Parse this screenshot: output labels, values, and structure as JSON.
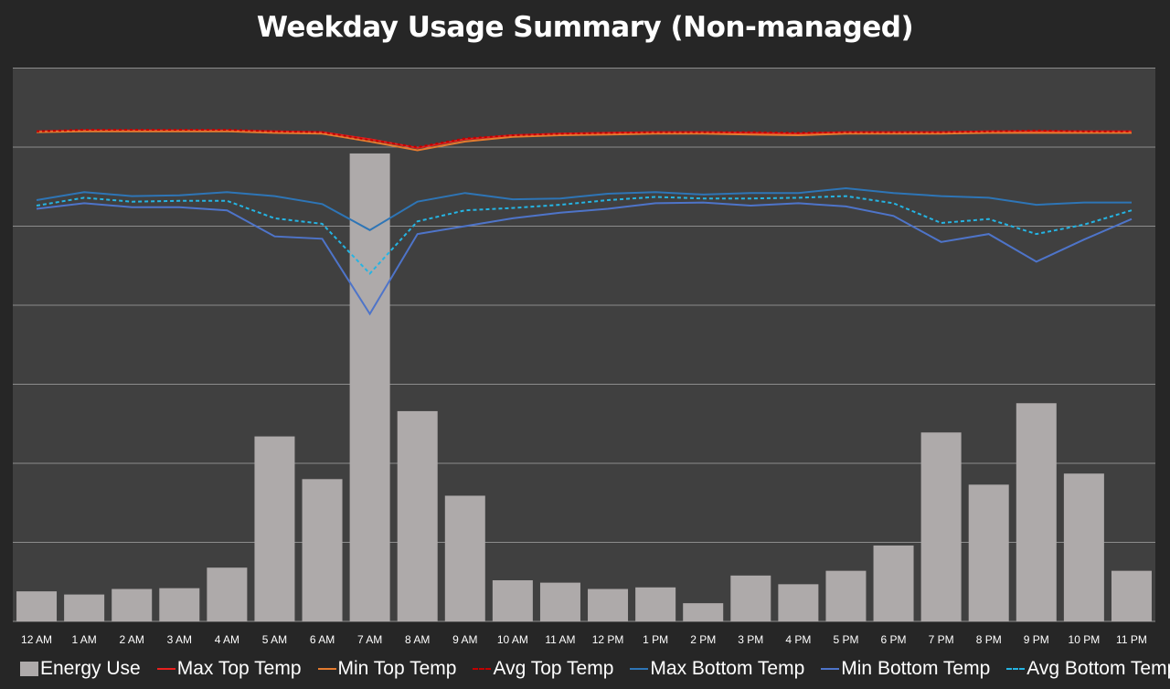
{
  "chart_data": {
    "type": "bar",
    "title": "Weekday Usage Summary (Non-managed)",
    "categories": [
      "12 AM",
      "1 AM",
      "2 AM",
      "3 AM",
      "4 AM",
      "5 AM",
      "6 AM",
      "7 AM",
      "8 AM",
      "9 AM",
      "10 AM",
      "11 AM",
      "12 PM",
      "1 PM",
      "2 PM",
      "3 PM",
      "4 PM",
      "5 PM",
      "6 PM",
      "7 PM",
      "8 PM",
      "9 PM",
      "10 PM",
      "11 PM"
    ],
    "ylim": [
      0,
      7
    ],
    "grid": true,
    "legend_position": "bottom",
    "series": [
      {
        "name": "Energy Use",
        "type": "bar",
        "color": "#aeaaaa",
        "dash": "none",
        "values": [
          0.38,
          0.34,
          0.41,
          0.42,
          0.68,
          2.34,
          1.8,
          5.92,
          2.66,
          1.59,
          0.52,
          0.49,
          0.41,
          0.43,
          0.23,
          0.58,
          0.47,
          0.64,
          0.96,
          2.39,
          1.73,
          2.76,
          1.87,
          0.64
        ]
      },
      {
        "name": "Max Top Temp",
        "type": "line",
        "color": "#e8201e",
        "dash": "none",
        "values": [
          6.2,
          6.21,
          6.21,
          6.21,
          6.21,
          6.2,
          6.19,
          6.1,
          5.99,
          6.1,
          6.15,
          6.17,
          6.18,
          6.19,
          6.19,
          6.18,
          6.17,
          6.19,
          6.19,
          6.19,
          6.2,
          6.2,
          6.2,
          6.2
        ]
      },
      {
        "name": "Min Top Temp",
        "type": "line",
        "color": "#e47b2f",
        "dash": "none",
        "values": [
          6.19,
          6.2,
          6.2,
          6.2,
          6.2,
          6.18,
          6.17,
          6.07,
          5.96,
          6.07,
          6.13,
          6.15,
          6.16,
          6.17,
          6.17,
          6.16,
          6.15,
          6.17,
          6.17,
          6.17,
          6.18,
          6.18,
          6.18,
          6.18
        ]
      },
      {
        "name": "Avg Top Temp",
        "type": "line",
        "color": "#c00000",
        "dash": "3 3",
        "values": [
          6.2,
          6.22,
          6.22,
          6.22,
          6.22,
          6.2,
          6.19,
          6.09,
          6.0,
          6.11,
          6.15,
          6.17,
          6.18,
          6.19,
          6.19,
          6.19,
          6.18,
          6.19,
          6.19,
          6.19,
          6.2,
          6.21,
          6.2,
          6.2
        ]
      },
      {
        "name": "Max Bottom Temp",
        "type": "line",
        "color": "#2e75b6",
        "dash": "none",
        "values": [
          5.33,
          5.43,
          5.38,
          5.39,
          5.43,
          5.38,
          5.28,
          4.95,
          5.31,
          5.42,
          5.34,
          5.35,
          5.41,
          5.43,
          5.4,
          5.42,
          5.42,
          5.48,
          5.42,
          5.38,
          5.36,
          5.27,
          5.3,
          5.3
        ]
      },
      {
        "name": "Min Bottom Temp",
        "type": "line",
        "color": "#4e74c9",
        "dash": "none",
        "values": [
          5.22,
          5.29,
          5.24,
          5.24,
          5.2,
          4.87,
          4.84,
          3.89,
          4.9,
          5.0,
          5.1,
          5.17,
          5.22,
          5.29,
          5.3,
          5.26,
          5.29,
          5.25,
          5.13,
          4.8,
          4.9,
          4.55,
          4.83,
          5.09
        ]
      },
      {
        "name": "Avg Bottom Temp",
        "type": "line",
        "color": "#25b4e3",
        "dash": "4 3",
        "values": [
          5.26,
          5.36,
          5.31,
          5.32,
          5.32,
          5.1,
          5.03,
          4.4,
          5.06,
          5.2,
          5.23,
          5.27,
          5.33,
          5.37,
          5.35,
          5.35,
          5.36,
          5.38,
          5.29,
          5.04,
          5.09,
          4.9,
          5.02,
          5.2
        ]
      }
    ]
  }
}
